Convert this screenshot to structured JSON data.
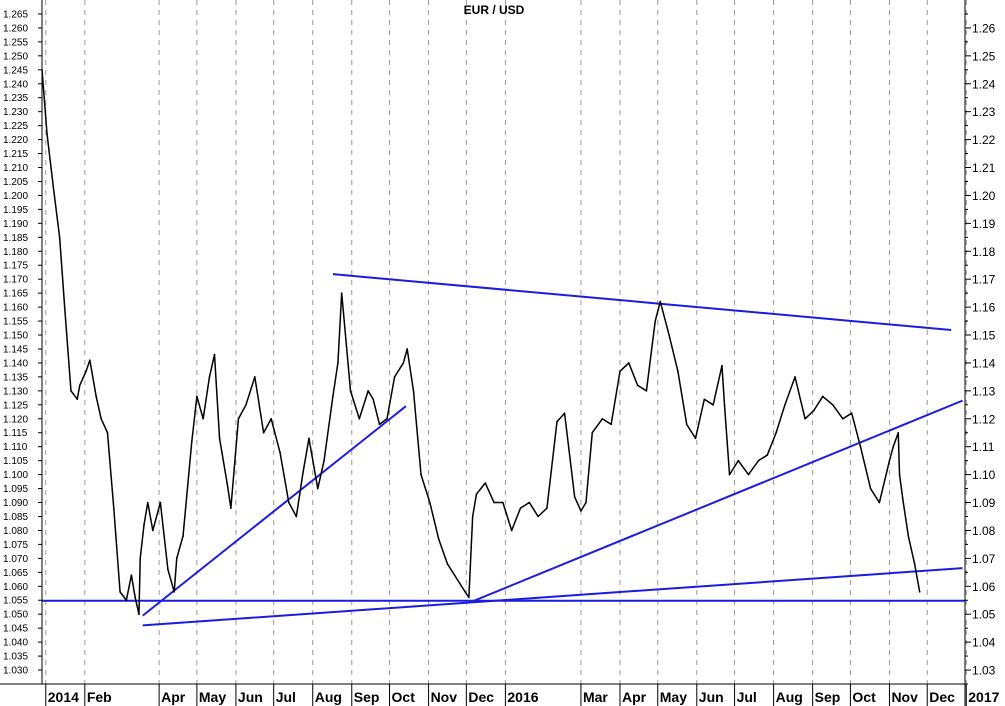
{
  "chart_data": {
    "type": "line",
    "title": "EUR / USD",
    "xlabel": "",
    "ylabel": "",
    "x_range": [
      "2014-12-29",
      "2016-12-31"
    ],
    "ylim": [
      1.025,
      1.27
    ],
    "grid": {
      "vertical": true,
      "horizontal": false
    },
    "left_ticks": [
      "1.030",
      "1.035",
      "1.040",
      "1.045",
      "1.050",
      "1.055",
      "1.060",
      "1.065",
      "1.070",
      "1.075",
      "1.080",
      "1.085",
      "1.090",
      "1.095",
      "1.100",
      "1.105",
      "1.110",
      "1.115",
      "1.120",
      "1.125",
      "1.130",
      "1.135",
      "1.140",
      "1.145",
      "1.150",
      "1.155",
      "1.160",
      "1.165",
      "1.170",
      "1.175",
      "1.180",
      "1.185",
      "1.190",
      "1.195",
      "1.200",
      "1.205",
      "1.210",
      "1.215",
      "1.220",
      "1.225",
      "1.230",
      "1.235",
      "1.240",
      "1.245",
      "1.250",
      "1.255",
      "1.260",
      "1.265"
    ],
    "right_ticks": [
      "1.03",
      "1.04",
      "1.05",
      "1.06",
      "1.07",
      "1.08",
      "1.09",
      "1.10",
      "1.11",
      "1.12",
      "1.13",
      "1.14",
      "1.15",
      "1.16",
      "1.17",
      "1.18",
      "1.19",
      "1.20",
      "1.21",
      "1.22",
      "1.23",
      "1.24",
      "1.25",
      "1.26"
    ],
    "x_ticks": [
      {
        "label": "2014",
        "date": "2015-01-01"
      },
      {
        "label": "Feb",
        "date": "2015-02-01"
      },
      {
        "label": "Apr",
        "date": "2015-04-01"
      },
      {
        "label": "May",
        "date": "2015-05-01"
      },
      {
        "label": "Jun",
        "date": "2015-06-01"
      },
      {
        "label": "Jul",
        "date": "2015-07-01"
      },
      {
        "label": "Aug",
        "date": "2015-08-01"
      },
      {
        "label": "Sep",
        "date": "2015-09-01"
      },
      {
        "label": "Oct",
        "date": "2015-10-01"
      },
      {
        "label": "Nov",
        "date": "2015-11-01"
      },
      {
        "label": "Dec",
        "date": "2015-12-01"
      },
      {
        "label": "2016",
        "date": "2016-01-01"
      },
      {
        "label": "Mar",
        "date": "2016-03-01"
      },
      {
        "label": "Apr",
        "date": "2016-04-01"
      },
      {
        "label": "May",
        "date": "2016-05-01"
      },
      {
        "label": "Jun",
        "date": "2016-06-01"
      },
      {
        "label": "Jul",
        "date": "2016-07-01"
      },
      {
        "label": "Aug",
        "date": "2016-08-01"
      },
      {
        "label": "Sep",
        "date": "2016-09-01"
      },
      {
        "label": "Oct",
        "date": "2016-10-01"
      },
      {
        "label": "Nov",
        "date": "2016-11-01"
      },
      {
        "label": "Dec",
        "date": "2016-12-01"
      },
      {
        "label": "2017",
        "date": "2017-01-01"
      }
    ],
    "series": [
      {
        "color": "#000000",
        "x": [
          "2014-12-29",
          "2015-01-02",
          "2015-01-07",
          "2015-01-12",
          "2015-01-16",
          "2015-01-21",
          "2015-01-26",
          "2015-01-28",
          "2015-02-02",
          "2015-02-05",
          "2015-02-10",
          "2015-02-14",
          "2015-02-19",
          "2015-02-24",
          "2015-03-01",
          "2015-03-06",
          "2015-03-10",
          "2015-03-13",
          "2015-03-16",
          "2015-03-17",
          "2015-03-20",
          "2015-03-23",
          "2015-03-27",
          "2015-04-02",
          "2015-04-08",
          "2015-04-13",
          "2015-04-15",
          "2015-04-20",
          "2015-04-27",
          "2015-05-01",
          "2015-05-06",
          "2015-05-11",
          "2015-05-15",
          "2015-05-19",
          "2015-05-25",
          "2015-05-28",
          "2015-06-03",
          "2015-06-09",
          "2015-06-16",
          "2015-06-23",
          "2015-06-29",
          "2015-07-06",
          "2015-07-13",
          "2015-07-19",
          "2015-07-24",
          "2015-07-29",
          "2015-08-05",
          "2015-08-10",
          "2015-08-17",
          "2015-08-21",
          "2015-08-24",
          "2015-08-26",
          "2015-08-31",
          "2015-09-07",
          "2015-09-14",
          "2015-09-18",
          "2015-09-23",
          "2015-09-29",
          "2015-10-05",
          "2015-10-12",
          "2015-10-15",
          "2015-10-20",
          "2015-10-26",
          "2015-11-02",
          "2015-11-09",
          "2015-11-16",
          "2015-11-23",
          "2015-11-30",
          "2015-12-03",
          "2015-12-06",
          "2015-12-09",
          "2015-12-16",
          "2015-12-23",
          "2015-12-30",
          "2016-01-06",
          "2016-01-13",
          "2016-01-20",
          "2016-01-27",
          "2016-02-03",
          "2016-02-11",
          "2016-02-17",
          "2016-02-25",
          "2016-03-01",
          "2016-03-05",
          "2016-03-10",
          "2016-03-18",
          "2016-03-25",
          "2016-04-01",
          "2016-04-08",
          "2016-04-15",
          "2016-04-22",
          "2016-04-29",
          "2016-05-03",
          "2016-05-10",
          "2016-05-17",
          "2016-05-24",
          "2016-05-31",
          "2016-06-07",
          "2016-06-14",
          "2016-06-21",
          "2016-06-23",
          "2016-06-27",
          "2016-07-04",
          "2016-07-12",
          "2016-07-20",
          "2016-07-27",
          "2016-08-03",
          "2016-08-10",
          "2016-08-18",
          "2016-08-26",
          "2016-09-02",
          "2016-09-09",
          "2016-09-17",
          "2016-09-25",
          "2016-10-02",
          "2016-10-09",
          "2016-10-17",
          "2016-10-24",
          "2016-11-01",
          "2016-11-04",
          "2016-11-08",
          "2016-11-09",
          "2016-11-12",
          "2016-11-16",
          "2016-11-21",
          "2016-11-25"
        ],
        "y": [
          1.245,
          1.222,
          1.203,
          1.185,
          1.16,
          1.13,
          1.127,
          1.132,
          1.137,
          1.141,
          1.128,
          1.12,
          1.115,
          1.088,
          1.058,
          1.055,
          1.064,
          1.056,
          1.05,
          1.07,
          1.082,
          1.09,
          1.08,
          1.09,
          1.066,
          1.058,
          1.07,
          1.078,
          1.112,
          1.128,
          1.12,
          1.135,
          1.143,
          1.113,
          1.097,
          1.088,
          1.12,
          1.125,
          1.135,
          1.115,
          1.12,
          1.108,
          1.09,
          1.085,
          1.1,
          1.113,
          1.095,
          1.105,
          1.128,
          1.14,
          1.165,
          1.155,
          1.13,
          1.12,
          1.13,
          1.127,
          1.118,
          1.12,
          1.135,
          1.14,
          1.145,
          1.13,
          1.1,
          1.09,
          1.077,
          1.068,
          1.063,
          1.058,
          1.056,
          1.085,
          1.093,
          1.097,
          1.09,
          1.09,
          1.08,
          1.088,
          1.09,
          1.085,
          1.088,
          1.119,
          1.122,
          1.092,
          1.087,
          1.09,
          1.115,
          1.12,
          1.118,
          1.137,
          1.14,
          1.132,
          1.13,
          1.155,
          1.162,
          1.15,
          1.137,
          1.118,
          1.113,
          1.127,
          1.125,
          1.139,
          1.125,
          1.1,
          1.105,
          1.1,
          1.105,
          1.107,
          1.115,
          1.125,
          1.135,
          1.12,
          1.123,
          1.128,
          1.125,
          1.12,
          1.122,
          1.11,
          1.095,
          1.09,
          1.105,
          1.11,
          1.115,
          1.1,
          1.09,
          1.078,
          1.068,
          1.058
        ]
      }
    ],
    "trendlines": [
      {
        "color": "#1c1ce0",
        "from": [
          "2015-03-19",
          1.0495
        ],
        "to": [
          "2015-10-14",
          1.1245
        ]
      },
      {
        "color": "#1c1ce0",
        "from": [
          "2015-08-17",
          1.1718
        ],
        "to": [
          "2016-12-20",
          1.1518
        ]
      },
      {
        "color": "#1c1ce0",
        "from": [
          "2015-12-07",
          1.0548
        ],
        "to": [
          "2016-12-29",
          1.1265
        ]
      },
      {
        "color": "#1c1ce0",
        "from": [
          "2015-03-19",
          1.046
        ],
        "to": [
          "2016-12-29",
          1.0665
        ]
      },
      {
        "color": "#1c1ce0",
        "from": [
          "2014-12-29",
          1.0548
        ],
        "to": [
          "2016-12-31",
          1.0548
        ]
      }
    ]
  }
}
